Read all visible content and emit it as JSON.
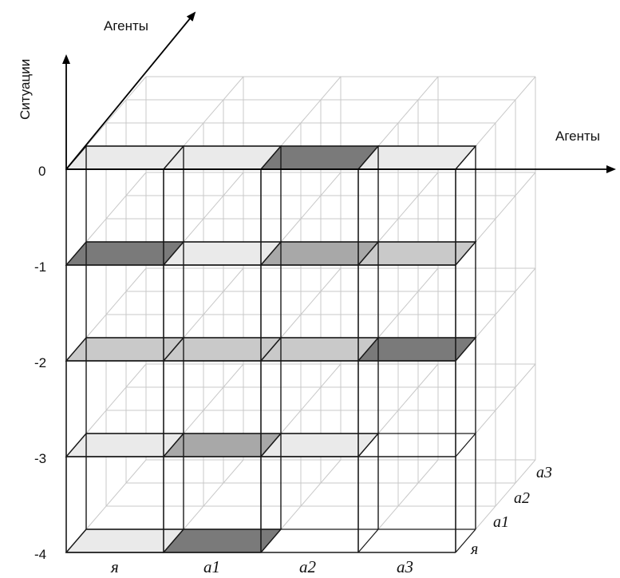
{
  "axes": {
    "vertical_label": "Ситуации",
    "depth_label": "Агенты",
    "horizontal_label": "Агенты"
  },
  "situation_levels": [
    "0",
    "-1",
    "-2",
    "-3",
    "-4"
  ],
  "front_agents": [
    "я",
    "a1",
    "a2",
    "a3"
  ],
  "depth_agents": [
    "я",
    "a1",
    "a2",
    "a3"
  ],
  "colors": {
    "grid_back": "#c8c8c8",
    "grid_front": "#1a1a1a",
    "cell_light": "#eaeaea",
    "cell_mid": "#c9c9c9",
    "cell_gray": "#a8a8a8",
    "cell_dark": "#7a7a7a"
  },
  "highlighted_cells": [
    {
      "level": "0",
      "agent": "я",
      "shade": "cell_light"
    },
    {
      "level": "0",
      "agent": "a1",
      "shade": "cell_light"
    },
    {
      "level": "0",
      "agent": "a2",
      "shade": "cell_dark"
    },
    {
      "level": "0",
      "agent": "a3",
      "shade": "cell_light"
    },
    {
      "level": "-1",
      "agent": "я",
      "shade": "cell_dark"
    },
    {
      "level": "-1",
      "agent": "a1",
      "shade": "cell_light"
    },
    {
      "level": "-1",
      "agent": "a2",
      "shade": "cell_gray"
    },
    {
      "level": "-1",
      "agent": "a3",
      "shade": "cell_mid"
    },
    {
      "level": "-2",
      "agent": "я",
      "shade": "cell_mid"
    },
    {
      "level": "-2",
      "agent": "a1",
      "shade": "cell_mid"
    },
    {
      "level": "-2",
      "agent": "a2",
      "shade": "cell_mid"
    },
    {
      "level": "-2",
      "agent": "a3",
      "shade": "cell_dark"
    },
    {
      "level": "-3",
      "agent": "я",
      "shade": "cell_light"
    },
    {
      "level": "-3",
      "agent": "a1",
      "shade": "cell_gray"
    },
    {
      "level": "-3",
      "agent": "a2",
      "shade": "cell_light"
    },
    {
      "level": "-3",
      "agent": "a3",
      "shade": "none"
    },
    {
      "level": "-4",
      "agent": "я",
      "shade": "cell_light"
    },
    {
      "level": "-4",
      "agent": "a1",
      "shade": "cell_dark"
    },
    {
      "level": "-4",
      "agent": "a2",
      "shade": "none"
    },
    {
      "level": "-4",
      "agent": "a3",
      "shade": "none"
    }
  ]
}
